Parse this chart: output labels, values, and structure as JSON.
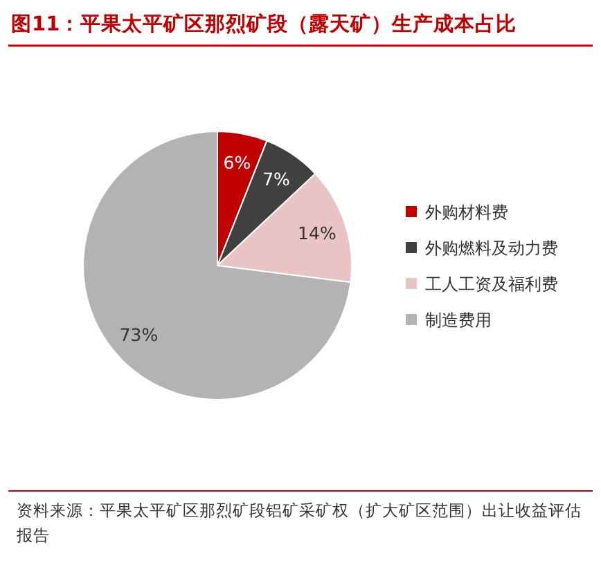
{
  "chart_data": {
    "type": "pie",
    "title": "图11：平果太平矿区那烈矿段（露天矿）生产成本占比",
    "categories": [
      "外购材料费",
      "外购燃料及动力费",
      "工人工资及福利费",
      "制造费用"
    ],
    "values": [
      6,
      7,
      14,
      73
    ],
    "colors": [
      "#c00000",
      "#404040",
      "#e8c4c4",
      "#b3b3b3"
    ],
    "value_labels": [
      "6%",
      "7%",
      "14%",
      "73%"
    ],
    "legend": "right",
    "annotations": [
      "资料来源：平果太平矿区那烈矿段铝矿采矿权（扩大矿区范围）出让收益评估报告"
    ]
  }
}
